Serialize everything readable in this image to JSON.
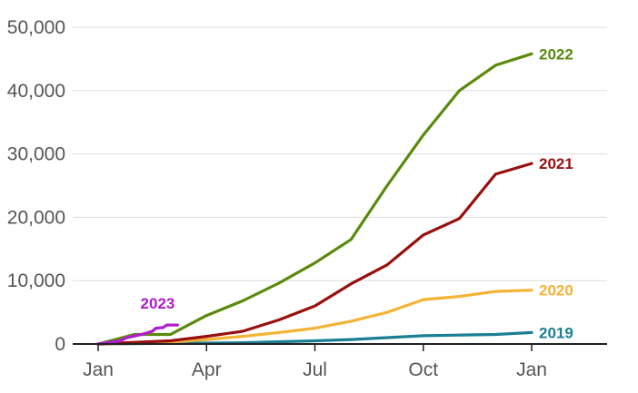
{
  "chart_data": {
    "type": "line",
    "title": "",
    "xlabel": "",
    "ylabel": "",
    "x_range_months": [
      0,
      12
    ],
    "ylim": [
      0,
      50000
    ],
    "grid": true,
    "y_ticks": [
      {
        "value": 0,
        "label": "0"
      },
      {
        "value": 10000,
        "label": "10,000"
      },
      {
        "value": 20000,
        "label": "20,000"
      },
      {
        "value": 30000,
        "label": "30,000"
      },
      {
        "value": 40000,
        "label": "40,000"
      },
      {
        "value": 50000,
        "label": "50,000"
      }
    ],
    "x_ticks": [
      {
        "value": 0,
        "label": "Jan"
      },
      {
        "value": 3,
        "label": "Apr"
      },
      {
        "value": 6,
        "label": "Jul"
      },
      {
        "value": 9,
        "label": "Oct"
      },
      {
        "value": 12,
        "label": "Jan"
      }
    ],
    "series": [
      {
        "name": "2019",
        "color": "#1a7f95",
        "points": [
          [
            0,
            0
          ],
          [
            2,
            100
          ],
          [
            4,
            200
          ],
          [
            6,
            500
          ],
          [
            7,
            700
          ],
          [
            8,
            1000
          ],
          [
            9,
            1300
          ],
          [
            10,
            1400
          ],
          [
            11,
            1500
          ],
          [
            12,
            1800
          ]
        ]
      },
      {
        "name": "2020",
        "color": "#f5b335",
        "points": [
          [
            0,
            0
          ],
          [
            1,
            100
          ],
          [
            2,
            300
          ],
          [
            3,
            700
          ],
          [
            4,
            1200
          ],
          [
            5,
            1800
          ],
          [
            6,
            2500
          ],
          [
            7,
            3600
          ],
          [
            8,
            5000
          ],
          [
            9,
            7000
          ],
          [
            10,
            7500
          ],
          [
            11,
            8300
          ],
          [
            12,
            8500
          ]
        ]
      },
      {
        "name": "2021",
        "color": "#990f0f",
        "points": [
          [
            0,
            0
          ],
          [
            2,
            500
          ],
          [
            3,
            1200
          ],
          [
            4,
            2000
          ],
          [
            5,
            3800
          ],
          [
            6,
            6000
          ],
          [
            7,
            9500
          ],
          [
            8,
            12500
          ],
          [
            9,
            17200
          ],
          [
            10,
            19800
          ],
          [
            11,
            26800
          ],
          [
            12,
            28500
          ]
        ]
      },
      {
        "name": "2022",
        "color": "#5a8a0c",
        "points": [
          [
            0,
            0
          ],
          [
            1,
            1500
          ],
          [
            2,
            1500
          ],
          [
            3,
            4500
          ],
          [
            4,
            6800
          ],
          [
            5,
            9600
          ],
          [
            6,
            12800
          ],
          [
            7,
            16500
          ],
          [
            8,
            25000
          ],
          [
            9,
            33000
          ],
          [
            10,
            40000
          ],
          [
            11,
            44000
          ],
          [
            12,
            45800
          ]
        ]
      },
      {
        "name": "2023",
        "color": "#b01ccf",
        "points": [
          [
            0,
            0
          ],
          [
            0.6,
            500
          ],
          [
            0.8,
            1000
          ],
          [
            1.2,
            1500
          ],
          [
            1.5,
            2000
          ],
          [
            1.6,
            2500
          ],
          [
            1.8,
            2600
          ],
          [
            1.9,
            3000
          ],
          [
            2.2,
            3000
          ]
        ]
      }
    ]
  }
}
